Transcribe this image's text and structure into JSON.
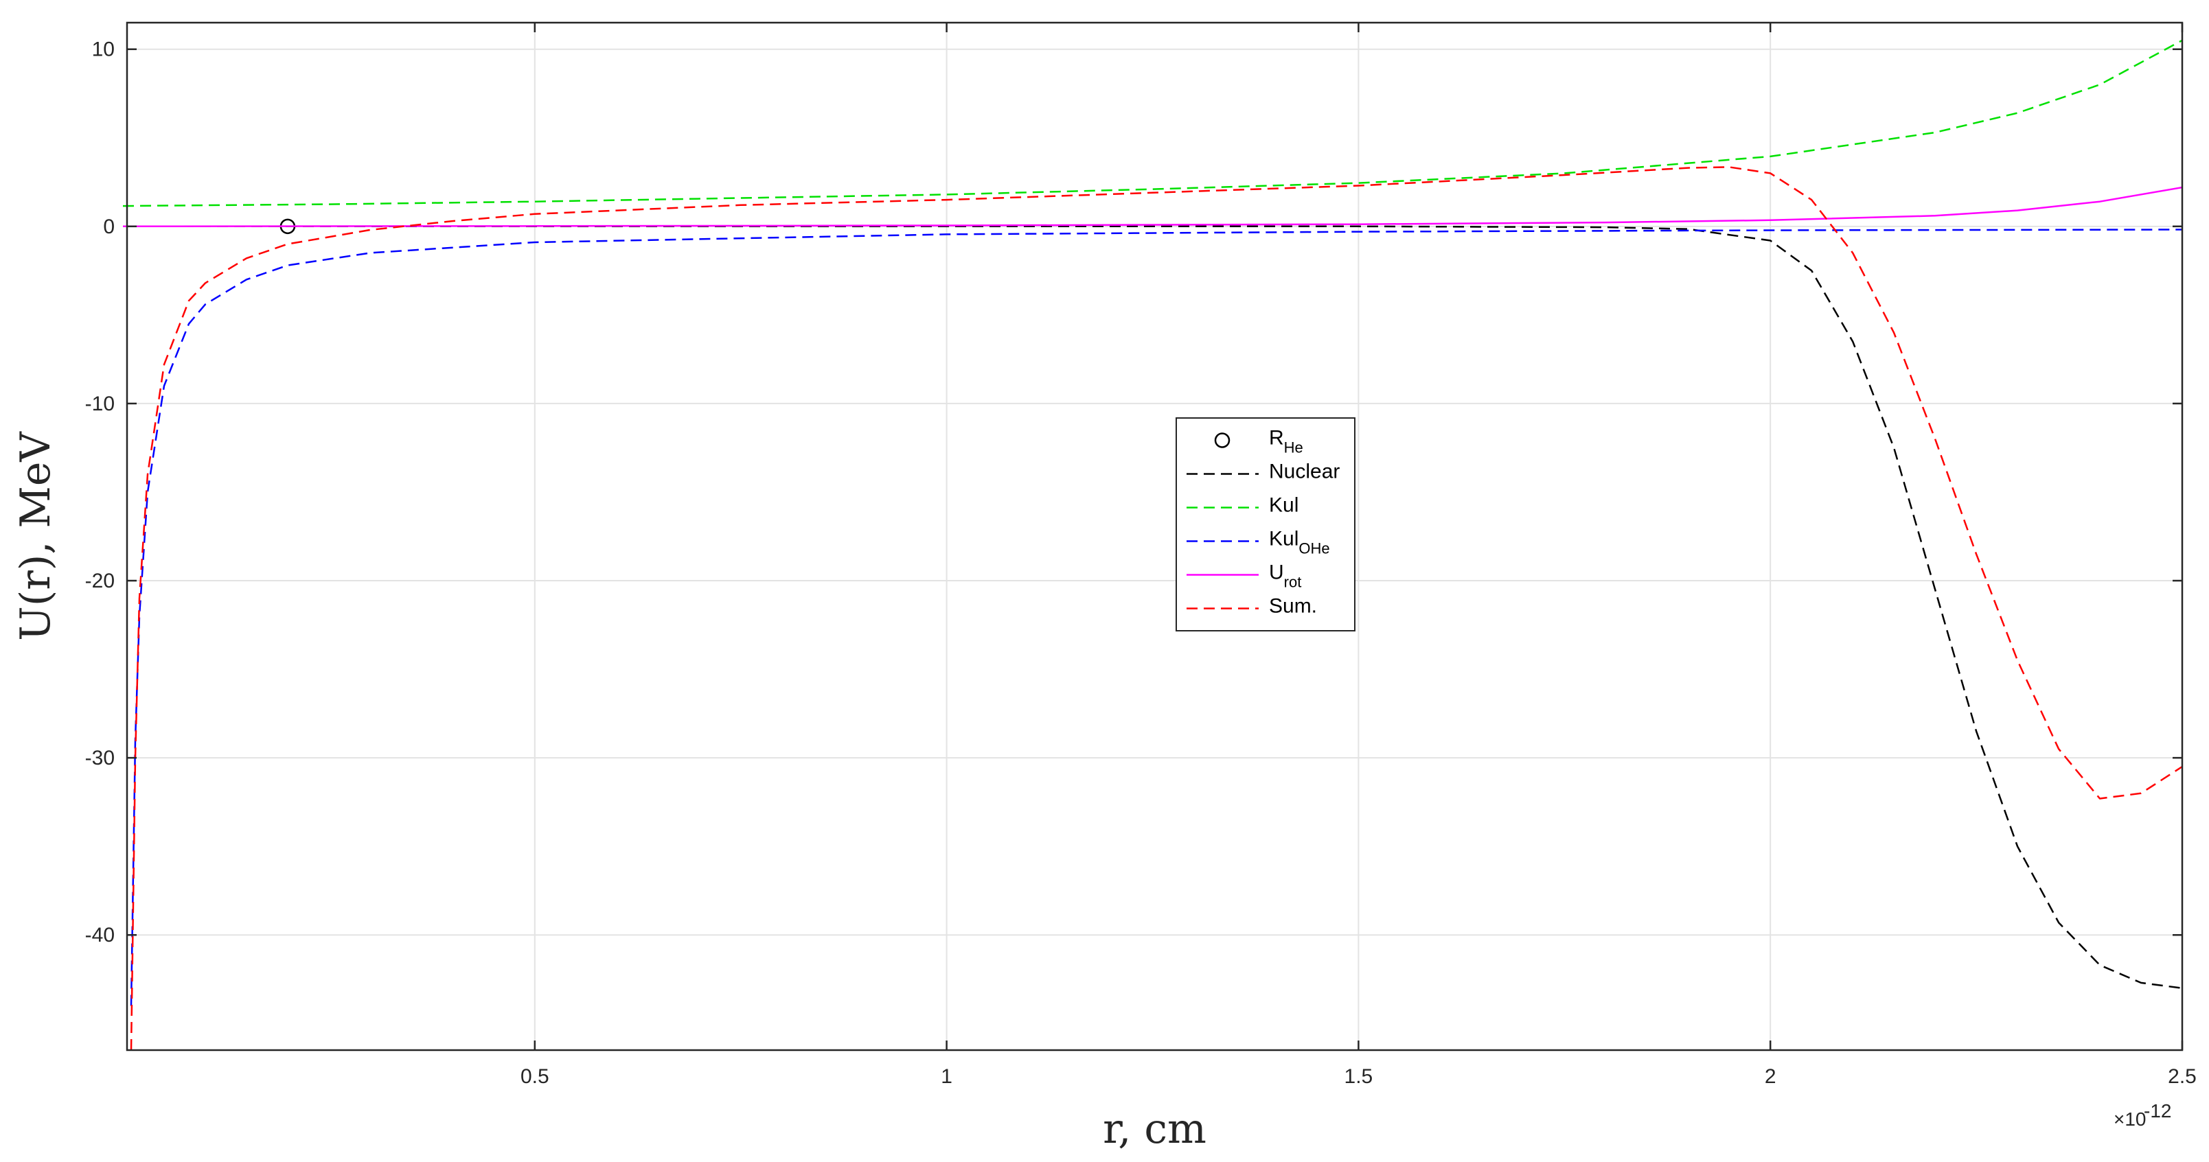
{
  "chart_data": {
    "type": "line",
    "xlabel": "r, cm",
    "ylabel": "U(r), MeV",
    "x_exponent_base": "×10",
    "x_exponent_power": "-12",
    "xlim": [
      0.005,
      2.5
    ],
    "ylim": [
      -46.5,
      11.5
    ],
    "x_unit_scale": "1e-12",
    "xticks": [
      0.5,
      1,
      1.5,
      2,
      2.5
    ],
    "xtick_labels": [
      "0.5",
      "1",
      "1.5",
      "2",
      "2.5"
    ],
    "yticks": [
      10,
      0,
      -10,
      -20,
      -30,
      -40
    ],
    "ytick_labels": [
      "10",
      "0",
      "-10",
      "-20",
      "-30",
      "-40"
    ],
    "grid": true,
    "legend_position": "center",
    "series": [
      {
        "name": "R",
        "name_sub": "He",
        "color": "#000000",
        "style": "marker",
        "x": [
          0.2
        ],
        "y": [
          0
        ]
      },
      {
        "name": "Nuclear",
        "color": "#000000",
        "style": "dashed",
        "x": [
          0.01,
          0.1,
          0.5,
          1.0,
          1.5,
          1.8,
          1.9,
          2.0,
          2.05,
          2.1,
          2.15,
          2.2,
          2.25,
          2.3,
          2.35,
          2.4,
          2.45,
          2.5
        ],
        "y": [
          0,
          0,
          0,
          0,
          0,
          -0.05,
          -0.15,
          -0.8,
          -2.5,
          -6.5,
          -12.5,
          -20.5,
          -28.5,
          -35.0,
          -39.3,
          -41.7,
          -42.7,
          -43.0
        ]
      },
      {
        "name": "Kul",
        "color": "#00e000",
        "style": "dashed",
        "x": [
          0.0,
          0.25,
          0.5,
          0.75,
          1.0,
          1.25,
          1.5,
          1.75,
          2.0,
          2.2,
          2.3,
          2.4,
          2.5
        ],
        "y": [
          1.15,
          1.25,
          1.4,
          1.6,
          1.8,
          2.1,
          2.45,
          3.0,
          3.95,
          5.3,
          6.4,
          8.0,
          10.5
        ]
      },
      {
        "name": "Kul",
        "name_sub": "OHe",
        "color": "#0000ff",
        "style": "dashed",
        "x": [
          0.01,
          0.015,
          0.02,
          0.03,
          0.05,
          0.08,
          0.1,
          0.15,
          0.2,
          0.3,
          0.5,
          1.0,
          1.5,
          2.0,
          2.5
        ],
        "y": [
          -44,
          -29,
          -22,
          -15,
          -9,
          -5.5,
          -4.4,
          -3.0,
          -2.2,
          -1.5,
          -0.9,
          -0.45,
          -0.3,
          -0.22,
          -0.18
        ]
      },
      {
        "name": "U",
        "name_sub": "rot",
        "color": "#ff00ff",
        "style": "solid",
        "x": [
          0.0,
          0.5,
          1.0,
          1.5,
          1.8,
          2.0,
          2.2,
          2.3,
          2.4,
          2.5
        ],
        "y": [
          0,
          0.02,
          0.05,
          0.12,
          0.22,
          0.35,
          0.6,
          0.9,
          1.4,
          2.2
        ]
      },
      {
        "name": "Sum.",
        "color": "#ff0000",
        "style": "dashed",
        "x": [
          0.01,
          0.015,
          0.02,
          0.03,
          0.05,
          0.08,
          0.1,
          0.15,
          0.2,
          0.3,
          0.4,
          0.5,
          0.75,
          1.0,
          1.25,
          1.5,
          1.75,
          1.9,
          1.95,
          2.0,
          2.05,
          2.1,
          2.15,
          2.2,
          2.25,
          2.3,
          2.35,
          2.4,
          2.45,
          2.5
        ],
        "y": [
          -46.5,
          -30,
          -21,
          -14,
          -7.8,
          -4.2,
          -3.2,
          -1.8,
          -1.0,
          -0.2,
          0.3,
          0.7,
          1.2,
          1.5,
          1.9,
          2.3,
          2.9,
          3.3,
          3.35,
          3.0,
          1.5,
          -1.5,
          -6.0,
          -12.0,
          -18.5,
          -24.5,
          -29.5,
          -32.3,
          -32.0,
          -30.5
        ]
      }
    ]
  }
}
